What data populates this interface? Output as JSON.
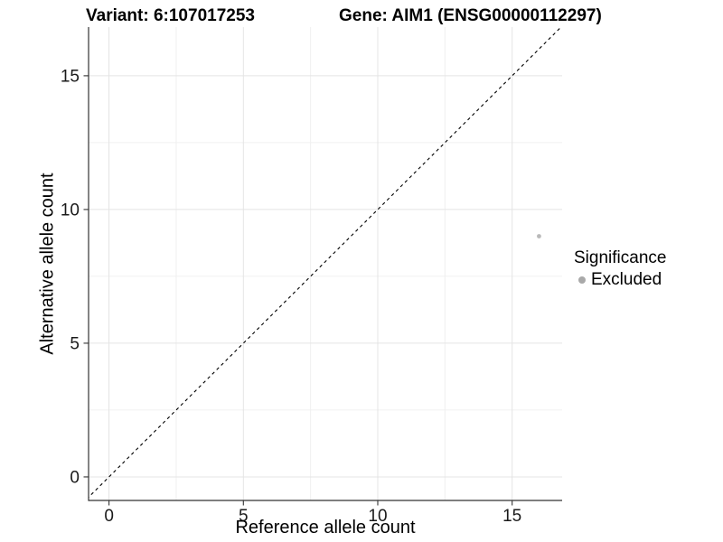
{
  "chart_data": {
    "type": "scatter",
    "title_left": "Variant: 6:107017253",
    "title_right": "Gene: AIM1 (ENSG00000112297)",
    "xlabel": "Reference allele count",
    "ylabel": "Alternative allele count",
    "xlim": [
      -0.76,
      16.86
    ],
    "ylim": [
      -0.88,
      16.82
    ],
    "x_major_ticks": [
      0,
      5,
      10,
      15
    ],
    "y_major_ticks": [
      0,
      5,
      10,
      15
    ],
    "x_minor_gridlines": [
      2.5,
      7.5,
      12.5
    ],
    "y_minor_gridlines": [
      2.5,
      7.5,
      12.5
    ],
    "grid": "major and minor gridlines on white panel",
    "reference_line": {
      "kind": "identity y=x",
      "style": "dashed",
      "color": "#000000"
    },
    "series": [
      {
        "name": "Excluded",
        "color": "#b9b9b9",
        "points": [
          {
            "x": 16,
            "y": 9
          }
        ]
      }
    ],
    "legend": {
      "title": "Significance",
      "position": "right",
      "entries": [
        {
          "label": "Excluded",
          "color": "#a9a9a9"
        }
      ]
    },
    "colors": {
      "axis_line": "#333333",
      "tick_text": "#1a1a1a",
      "grid_major": "#e4e4e4",
      "grid_minor": "#f0f0f0",
      "background": "#ffffff"
    }
  }
}
